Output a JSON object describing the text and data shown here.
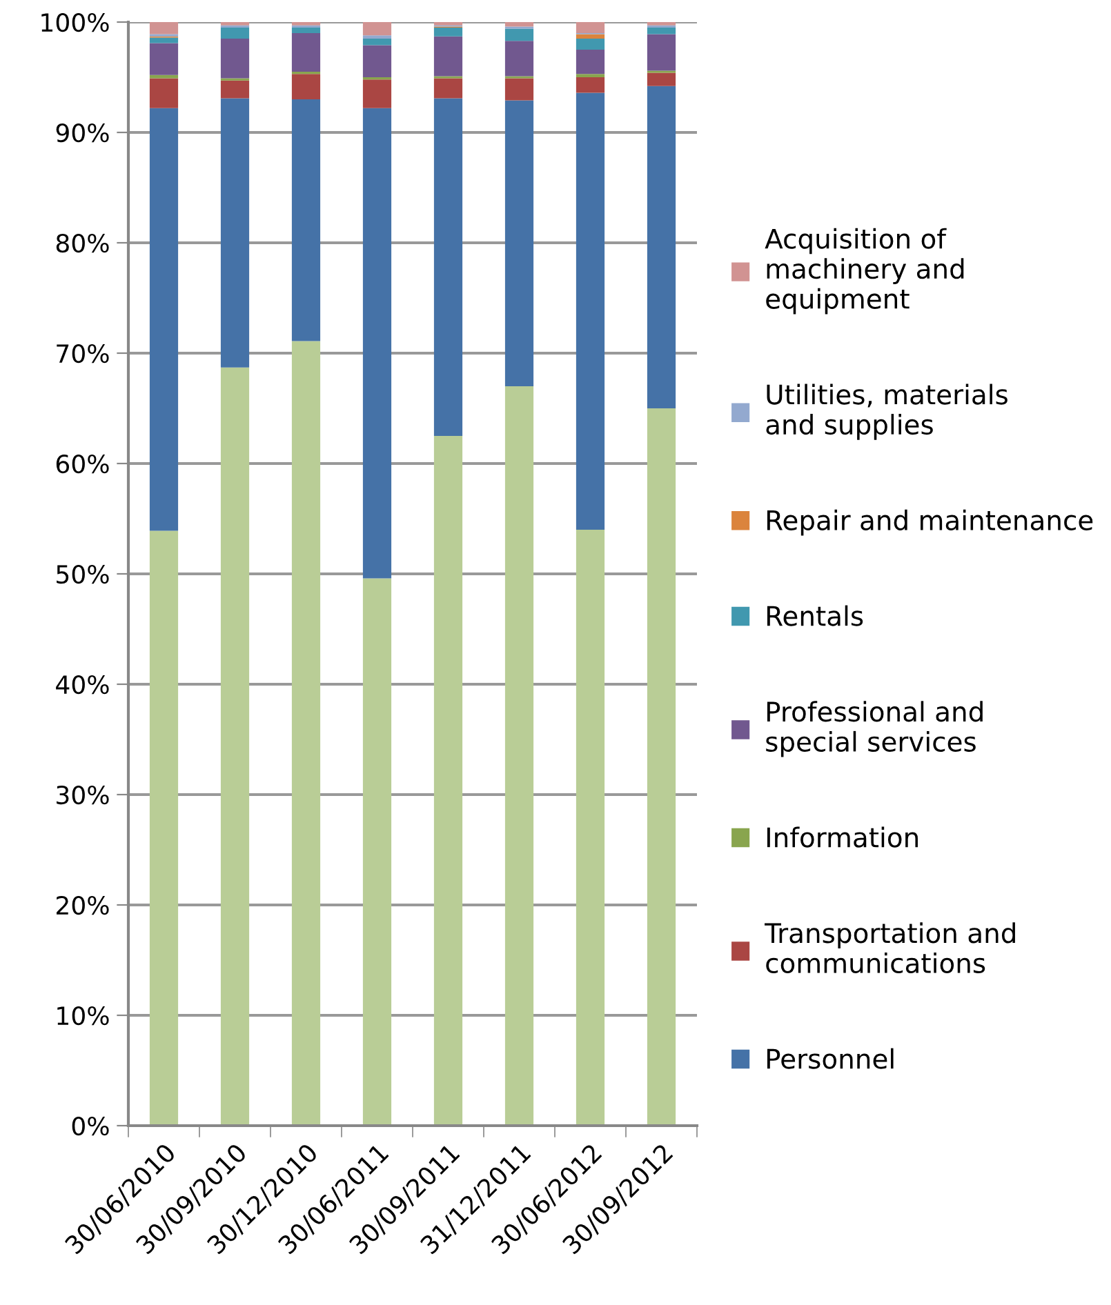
{
  "chart_data": {
    "type": "bar",
    "stacked": true,
    "categories": [
      "30/06/2010",
      "30/09/2010",
      "30/12/2010",
      "30/06/2011",
      "30/09/2011",
      "31/12/2011",
      "30/06/2012",
      "30/09/2012"
    ],
    "series": [
      {
        "color": "#b9cd96",
        "values": [
          53.9,
          68.7,
          71.1,
          49.6,
          62.5,
          67.0,
          54.0,
          65.0
        ]
      },
      {
        "name": "Personnel",
        "color": "#4572a7",
        "values": [
          38.3,
          24.4,
          21.9,
          42.6,
          30.6,
          25.9,
          39.6,
          29.2
        ]
      },
      {
        "name": "Transportation and communications",
        "color": "#aa4643",
        "values": [
          2.7,
          1.6,
          2.3,
          2.6,
          1.8,
          2.0,
          1.4,
          1.2
        ]
      },
      {
        "name": "Information",
        "color": "#89a54e",
        "values": [
          0.3,
          0.2,
          0.2,
          0.2,
          0.2,
          0.2,
          0.3,
          0.2
        ]
      },
      {
        "name": "Professional and special services",
        "color": "#71588f",
        "values": [
          2.9,
          3.6,
          3.5,
          2.9,
          3.6,
          3.2,
          2.2,
          3.3
        ]
      },
      {
        "name": "Rentals",
        "color": "#4198af",
        "values": [
          0.5,
          1.0,
          0.5,
          0.6,
          0.8,
          1.1,
          1.0,
          0.6
        ]
      },
      {
        "name": "Repair and maintenance",
        "color": "#db843d",
        "values": [
          0.1,
          0.0,
          0.0,
          0.0,
          0.1,
          0.0,
          0.4,
          0.0
        ]
      },
      {
        "name": "Utilities, materials and supplies",
        "color": "#93a9cf",
        "values": [
          0.2,
          0.2,
          0.2,
          0.3,
          0.1,
          0.2,
          0.1,
          0.2
        ]
      },
      {
        "name": "Acquisition of machinery and equipment",
        "color": "#d19392",
        "values": [
          1.1,
          0.3,
          0.3,
          1.2,
          0.3,
          0.4,
          1.0,
          0.3
        ]
      }
    ],
    "ylim": [
      0,
      100
    ],
    "yticks": [
      {
        "value": 0,
        "label": "0%"
      },
      {
        "value": 10,
        "label": "10%"
      },
      {
        "value": 20,
        "label": "20%"
      },
      {
        "value": 30,
        "label": "30%"
      },
      {
        "value": 40,
        "label": "40%"
      },
      {
        "value": 50,
        "label": "50%"
      },
      {
        "value": 60,
        "label": "60%"
      },
      {
        "value": 70,
        "label": "70%"
      },
      {
        "value": 80,
        "label": "80%"
      },
      {
        "value": 90,
        "label": "90%"
      },
      {
        "value": 100,
        "label": "100%"
      }
    ],
    "grid": "y",
    "legend": "right"
  }
}
